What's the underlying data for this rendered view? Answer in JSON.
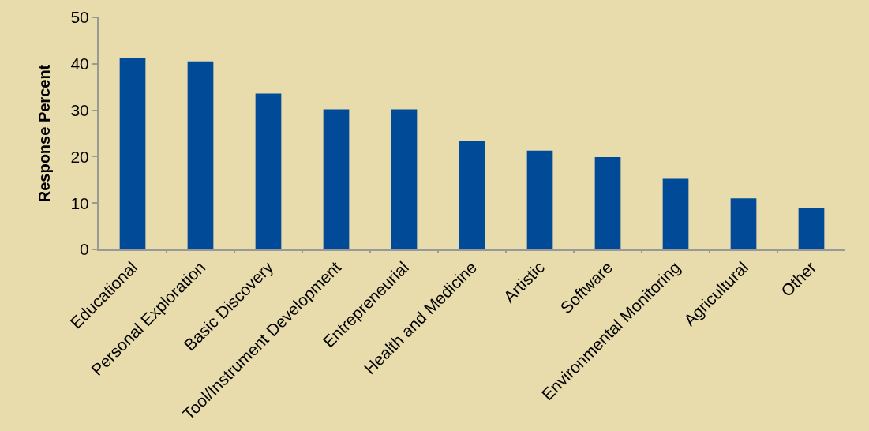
{
  "chart_data": {
    "type": "bar",
    "ylabel": "Response Percent",
    "categories": [
      "Educational",
      "Personal Exploration",
      "Basic Discovery",
      "Tool/Instrument Development",
      "Entrepreneurial",
      "Health and Medicine",
      "Artistic",
      "Software",
      "Environmental Monitoring",
      "Agricultural",
      "Other"
    ],
    "values": [
      41.2,
      40.5,
      33.6,
      30.2,
      30.2,
      23.3,
      21.3,
      19.9,
      15.2,
      11.0,
      9.0
    ],
    "color": "#004a97",
    "ylim": [
      0,
      50
    ],
    "yticks": [
      0,
      10,
      20,
      30,
      40,
      50
    ],
    "grid": false
  }
}
